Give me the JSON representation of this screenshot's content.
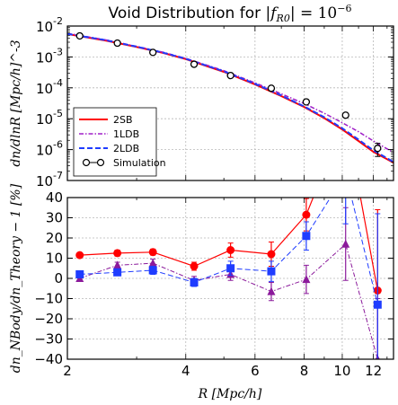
{
  "chart_data": [
    {
      "type": "line",
      "panel": "top",
      "title": "Void Distribution for |f_R0| = 10^-6",
      "title_parts": {
        "prefix": "Void Distribution for ",
        "math": "|f",
        "sub": "R0",
        "math2": "| = 10",
        "sup": "−6"
      },
      "ylabel": "dn/dlnR [Mpc/h]^-3",
      "xscale": "log",
      "yscale": "log",
      "xlim": [
        2,
        13.5
      ],
      "ylim": [
        1e-07,
        0.01
      ],
      "grid": true,
      "ytick_labels": [
        {
          "base": "10",
          "exp": "-2",
          "value": 0.01
        },
        {
          "base": "10",
          "exp": "-3",
          "value": 0.001
        },
        {
          "base": "10",
          "exp": "-4",
          "value": 0.0001
        },
        {
          "base": "10",
          "exp": "-5",
          "value": 1e-05
        },
        {
          "base": "10",
          "exp": "-6",
          "value": 1e-06
        },
        {
          "base": "10",
          "exp": "-7",
          "value": 1e-07
        }
      ],
      "legend_position": "lower-left",
      "series": [
        {
          "name": "2SB",
          "style": "solid",
          "color": "#ff0000",
          "x": [
            2,
            2.5,
            3,
            3.5,
            4,
            5,
            6,
            7,
            8,
            9,
            10,
            11,
            12,
            13.5
          ],
          "y": [
            0.0055,
            0.0034,
            0.0021,
            0.00135,
            0.00085,
            0.00033,
            0.00013,
            5.4e-05,
            2.4e-05,
            1.05e-05,
            4.5e-06,
            1.9e-06,
            8.5e-07,
            3.8e-07
          ]
        },
        {
          "name": "1LDB",
          "style": "dashdot",
          "color": "#a020c8",
          "x": [
            2,
            2.5,
            3,
            3.5,
            4,
            5,
            6,
            7,
            8,
            9,
            10,
            11,
            12,
            13.5
          ],
          "y": [
            0.0058,
            0.0036,
            0.0022,
            0.00143,
            0.0009,
            0.00036,
            0.000145,
            6.4e-05,
            3.1e-05,
            1.5e-05,
            7.4e-06,
            3.8e-06,
            1.9e-06,
            8e-07
          ]
        },
        {
          "name": "2LDB",
          "style": "dashed",
          "color": "#1f3cff",
          "x": [
            2,
            2.5,
            3,
            3.5,
            4,
            5,
            6,
            7,
            8,
            9,
            10,
            11,
            12,
            13.5
          ],
          "y": [
            0.0056,
            0.0035,
            0.00215,
            0.00138,
            0.00087,
            0.00034,
            0.000135,
            5.7e-05,
            2.5e-05,
            1.12e-05,
            4.9e-06,
            2.1e-06,
            9.5e-07,
            4e-07
          ]
        },
        {
          "name": "Simulation",
          "style": "markers",
          "color": "#000000",
          "x": [
            2.15,
            2.68,
            3.3,
            4.2,
            5.2,
            6.6,
            8.1,
            10.2,
            12.3
          ],
          "y": [
            0.0048,
            0.0028,
            0.0014,
            0.00058,
            0.00025,
            9.7e-05,
            3.5e-05,
            1.3e-05,
            1.1e-06
          ],
          "err": [
            0.0002,
            0.00012,
            7e-05,
            3e-05,
            1.5e-05,
            8e-06,
            4e-06,
            2e-06,
            5e-07
          ]
        }
      ]
    },
    {
      "type": "line",
      "panel": "bottom",
      "ylabel": "dn_NBody/dn_Theory − 1 [%]",
      "xlabel": "R [Mpc/h]",
      "xscale": "log",
      "xlim": [
        2,
        13.5
      ],
      "ylim": [
        -40,
        40
      ],
      "grid": true,
      "x_ticks": [
        2,
        4,
        6,
        8,
        10,
        12
      ],
      "y_ticks": [
        -40,
        -30,
        -20,
        -10,
        0,
        10,
        20,
        30,
        40
      ],
      "series": [
        {
          "name": "2SB",
          "style": "solid",
          "marker": "circle",
          "color": "#ff0000",
          "x": [
            2.15,
            2.68,
            3.3,
            4.2,
            5.2,
            6.6,
            8.1,
            10.2,
            12.3
          ],
          "y": [
            11.5,
            12.5,
            13,
            6,
            14,
            12,
            31.5,
            80,
            -6
          ],
          "err": [
            1,
            1.5,
            1.5,
            2,
            3.5,
            6,
            8,
            40,
            40
          ]
        },
        {
          "name": "1LDB",
          "style": "dashdot",
          "marker": "triangle",
          "color": "#8b1a9b",
          "x": [
            2.15,
            2.68,
            3.3,
            4.2,
            5.2,
            6.6,
            8.1,
            10.2,
            12.3
          ],
          "y": [
            0,
            6.5,
            7.5,
            -1,
            2,
            -6.5,
            -0.5,
            17,
            -40
          ],
          "err": [
            1,
            1.5,
            2,
            2,
            3,
            4.5,
            7,
            18,
            30
          ]
        },
        {
          "name": "2LDB",
          "style": "dashed",
          "marker": "square",
          "color": "#1f3cff",
          "x": [
            2.15,
            2.68,
            3.3,
            4.2,
            5.2,
            6.6,
            8.1,
            10.2,
            12.3
          ],
          "y": [
            2,
            3,
            4,
            -2,
            5,
            3.5,
            21,
            52,
            -13
          ],
          "err": [
            1,
            1.5,
            2,
            2,
            3.5,
            5,
            7,
            25,
            45
          ]
        }
      ]
    }
  ]
}
